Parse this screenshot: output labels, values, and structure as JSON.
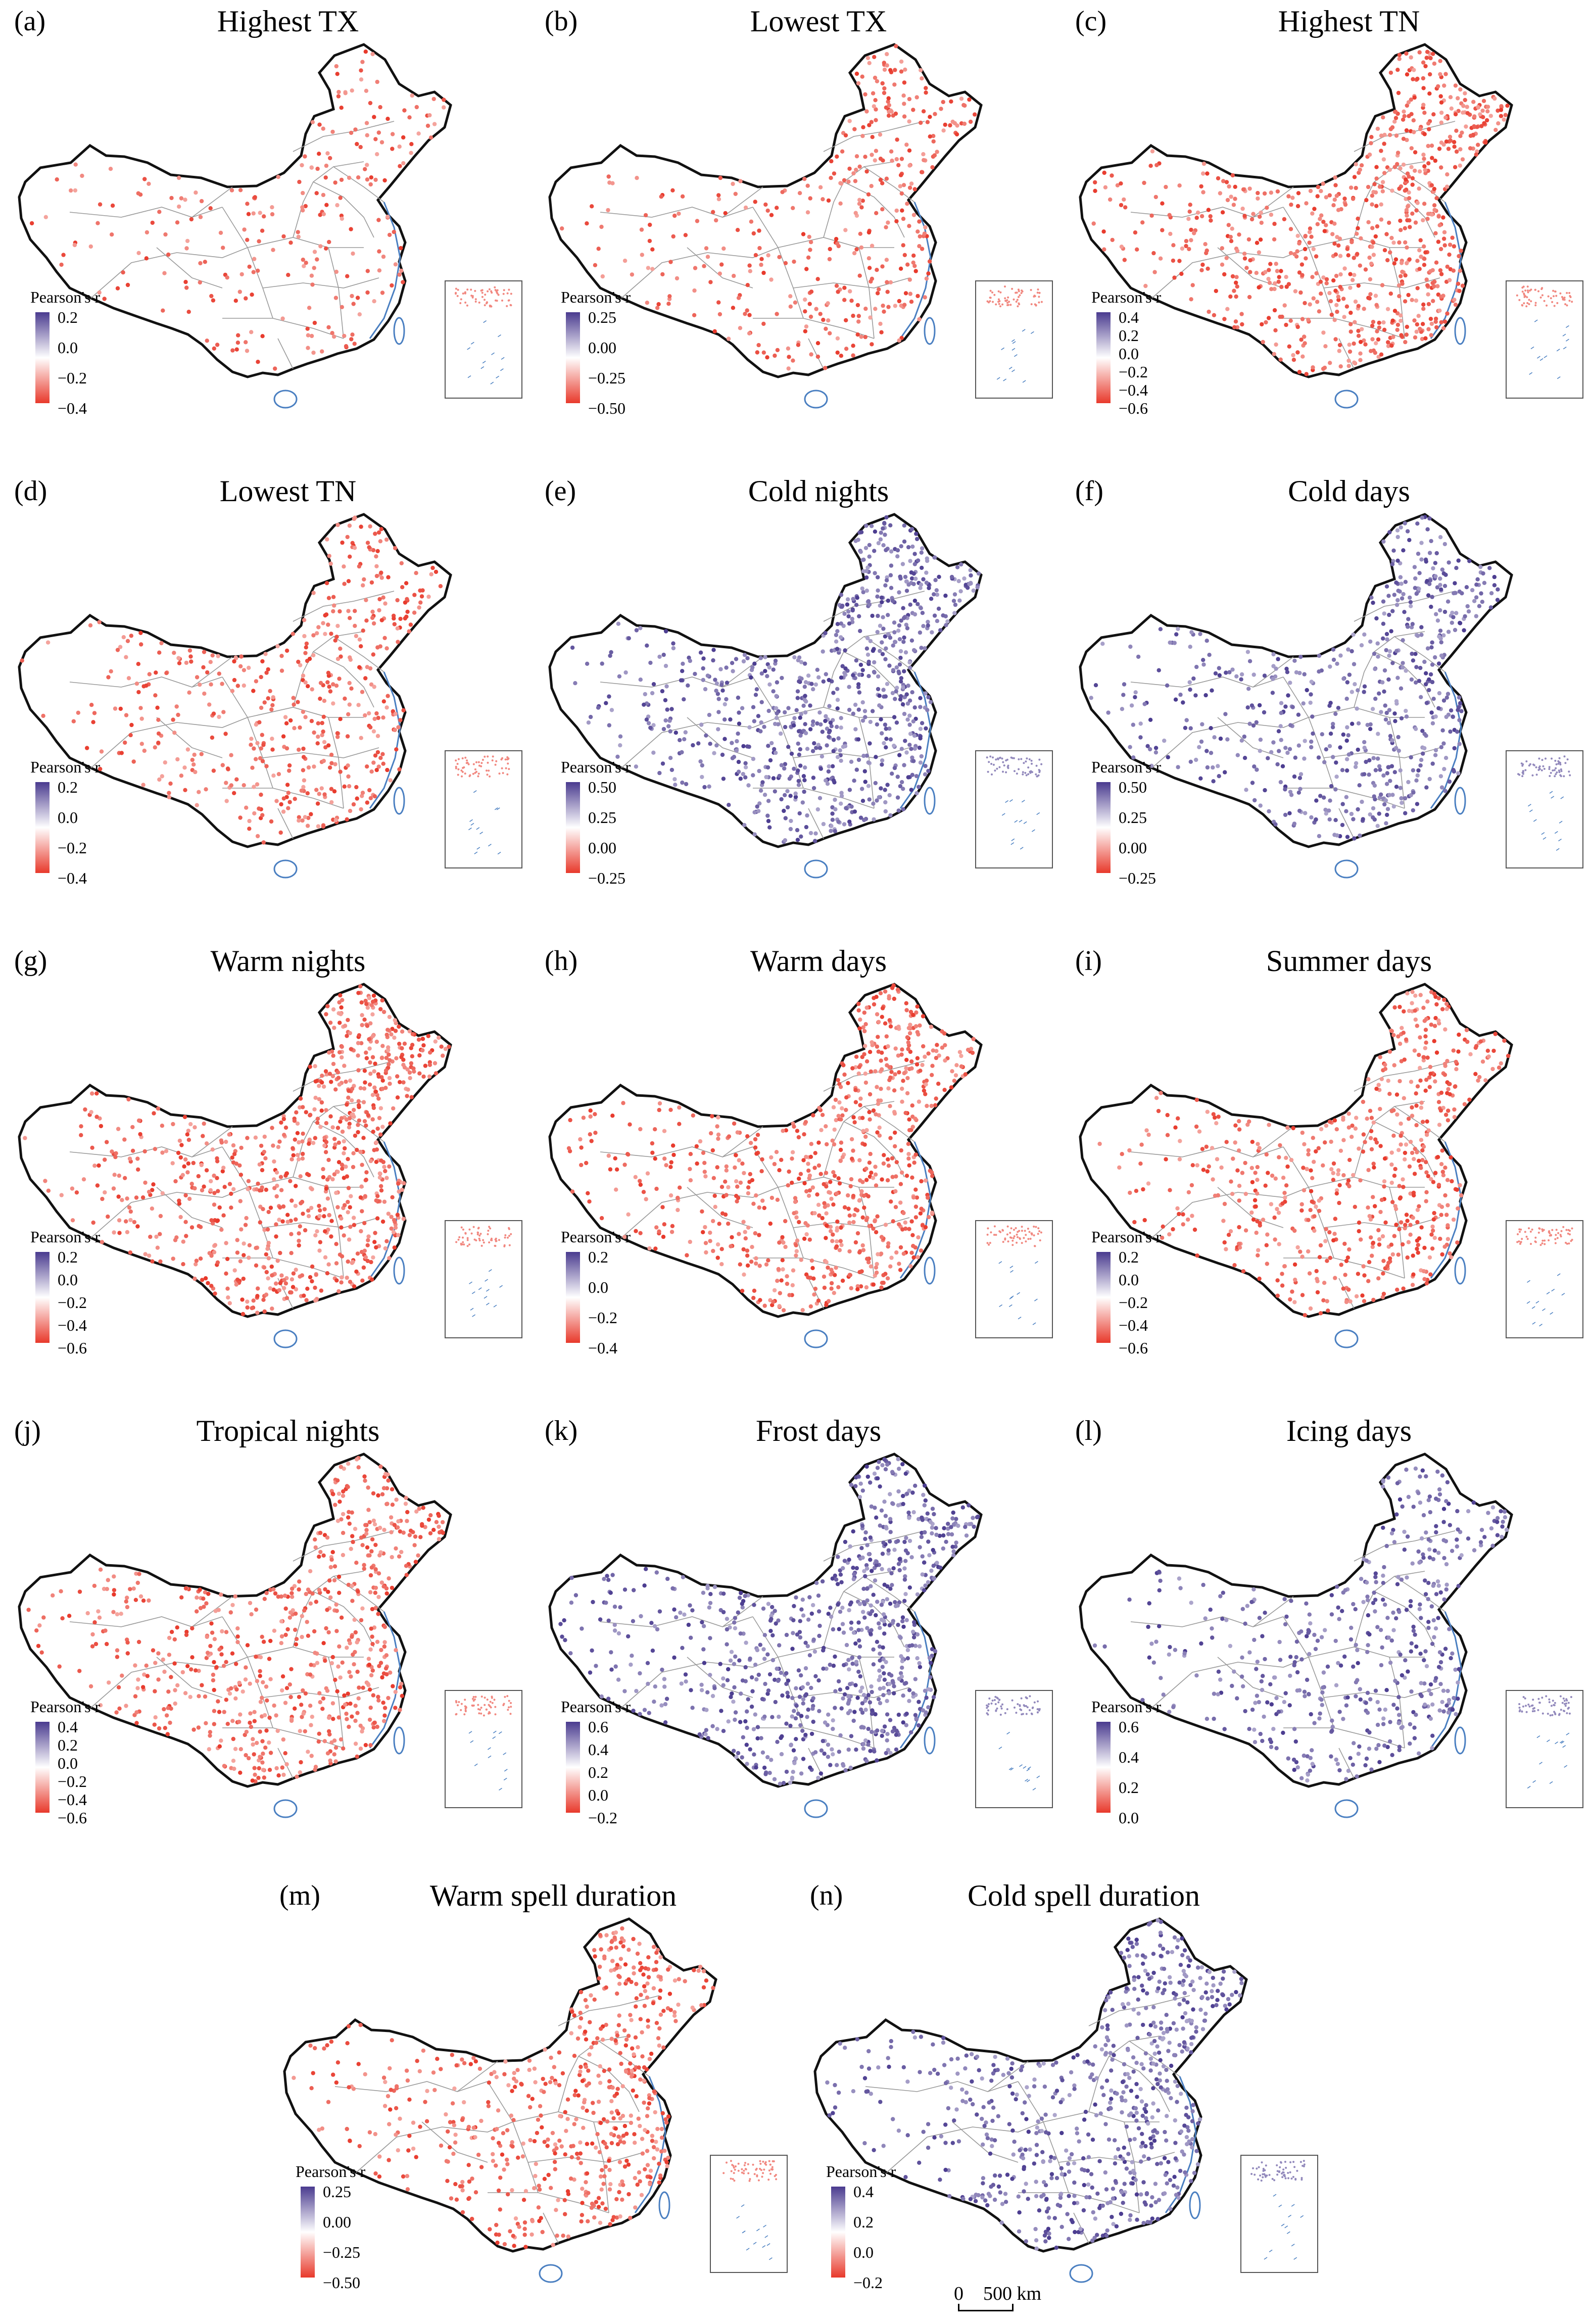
{
  "figure": {
    "legend_label": "Pearson's r",
    "colors": {
      "negative": "#e8392b",
      "neutral": "#ffffff",
      "positive": "#4a3b8f",
      "border": "#111111",
      "province": "#9a9a9a",
      "coast": "#4a7fc1"
    },
    "scale_bar": {
      "zero": "0",
      "distance": "500 km"
    }
  },
  "panels": [
    {
      "letter": "(a)",
      "title": "Highest TX",
      "ticks": [
        "0.2",
        "0.0",
        "−0.2",
        "−0.4"
      ],
      "sign": "negative",
      "density": 0.28
    },
    {
      "letter": "(b)",
      "title": "Lowest TX",
      "ticks": [
        "0.25",
        "0.00",
        "−0.25",
        "−0.50"
      ],
      "sign": "negative",
      "density": 0.45
    },
    {
      "letter": "(c)",
      "title": "Highest TN",
      "ticks": [
        "0.4",
        "0.2",
        "0.0",
        "−0.2",
        "−0.4",
        "−0.6"
      ],
      "sign": "negative",
      "density": 0.9
    },
    {
      "letter": "(d)",
      "title": "Lowest TN",
      "ticks": [
        "0.2",
        "0.0",
        "−0.2",
        "−0.4"
      ],
      "sign": "negative",
      "density": 0.55
    },
    {
      "letter": "(e)",
      "title": "Cold nights",
      "ticks": [
        "0.50",
        "0.25",
        "0.00",
        "−0.25"
      ],
      "sign": "positive",
      "density": 0.95
    },
    {
      "letter": "(f)",
      "title": "Cold days",
      "ticks": [
        "0.50",
        "0.25",
        "0.00",
        "−0.25"
      ],
      "sign": "positive",
      "density": 0.7
    },
    {
      "letter": "(g)",
      "title": "Warm nights",
      "ticks": [
        "0.2",
        "0.0",
        "−0.2",
        "−0.4",
        "−0.6"
      ],
      "sign": "negative",
      "density": 0.95
    },
    {
      "letter": "(h)",
      "title": "Warm days",
      "ticks": [
        "0.2",
        "0.0",
        "−0.2",
        "−0.4"
      ],
      "sign": "negative",
      "density": 0.85
    },
    {
      "letter": "(i)",
      "title": "Summer days",
      "ticks": [
        "0.2",
        "0.0",
        "−0.2",
        "−0.4",
        "−0.6"
      ],
      "sign": "negative",
      "density": 0.7
    },
    {
      "letter": "(j)",
      "title": "Tropical nights",
      "ticks": [
        "0.4",
        "0.2",
        "0.0",
        "−0.2",
        "−0.4",
        "−0.6"
      ],
      "sign": "negative",
      "density": 0.75
    },
    {
      "letter": "(k)",
      "title": "Frost days",
      "ticks": [
        "0.6",
        "0.4",
        "0.2",
        "0.0",
        "−0.2"
      ],
      "sign": "positive",
      "density": 0.95
    },
    {
      "letter": "(l)",
      "title": "Icing days",
      "ticks": [
        "0.6",
        "0.4",
        "0.2",
        "0.0"
      ],
      "sign": "positive",
      "density": 0.55
    },
    {
      "letter": "(m)",
      "title": "Warm spell duration",
      "ticks": [
        "0.25",
        "0.00",
        "−0.25",
        "−0.50"
      ],
      "sign": "negative",
      "density": 0.7
    },
    {
      "letter": "(n)",
      "title": "Cold spell duration",
      "ticks": [
        "0.4",
        "0.2",
        "0.0",
        "−0.2"
      ],
      "sign": "positive",
      "density": 0.8
    }
  ]
}
